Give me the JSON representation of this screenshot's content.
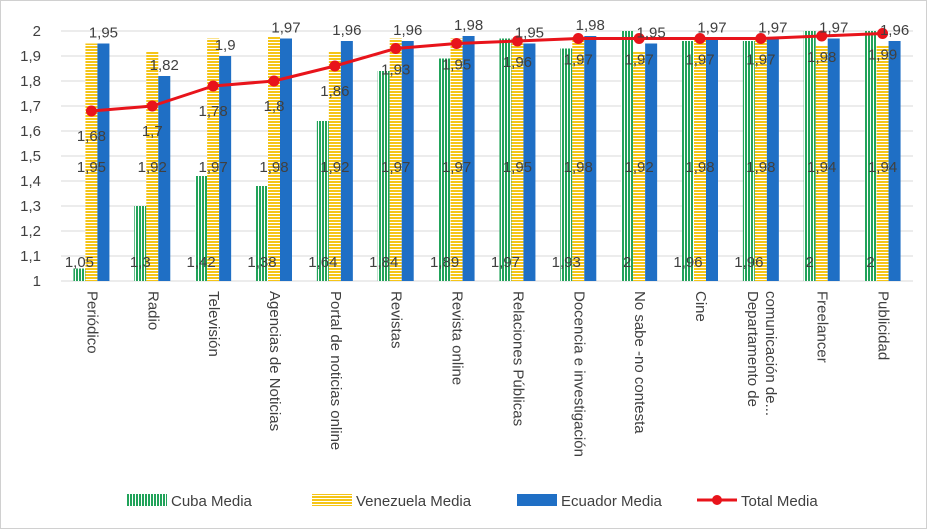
{
  "chart_data": {
    "type": "bar",
    "title": "",
    "xlabel": "",
    "ylabel": "",
    "ylim": [
      1,
      2
    ],
    "yticks": [
      "1",
      "1,1",
      "1,2",
      "1,3",
      "1,4",
      "1,5",
      "1,6",
      "1,7",
      "1,8",
      "1,9",
      "2"
    ],
    "grid": "horizontal",
    "legend_position": "bottom",
    "categories": [
      "Periódico",
      "Radio",
      "Televisión",
      "Agencias de Noticias",
      "Portal de noticias online",
      "Revistas",
      "Revista online",
      "Relaciones Públicas",
      "Docencia e investigación",
      "No sabe -no contesta",
      "Cine",
      "Departamento de comunicación de...",
      "Freelancer",
      "Publicidad"
    ],
    "category_lines": [
      [
        "Periódico"
      ],
      [
        "Radio"
      ],
      [
        "Televisión"
      ],
      [
        "Agencias de Noticias"
      ],
      [
        "Portal de noticias online"
      ],
      [
        "Revistas"
      ],
      [
        "Revista online"
      ],
      [
        "Relaciones Públicas"
      ],
      [
        "Docencia e investigación"
      ],
      [
        "No sabe -no contesta"
      ],
      [
        "Cine"
      ],
      [
        "Departamento de",
        "comunicación de..."
      ],
      [
        "Freelancer"
      ],
      [
        "Publicidad"
      ]
    ],
    "series": [
      {
        "name": "Cuba Media",
        "kind": "bar",
        "color": "#21a35a",
        "pattern": "vertical-stripes",
        "values": [
          1.05,
          1.3,
          1.42,
          1.38,
          1.64,
          1.84,
          1.89,
          1.97,
          1.93,
          2,
          1.96,
          1.96,
          2,
          2
        ],
        "labels": [
          "1,05",
          "1,3",
          "1,42",
          "1,38",
          "1,64",
          "1,84",
          "1,89",
          "1,97",
          "1,93",
          "2",
          "1,96",
          "1,96",
          "2",
          "2"
        ]
      },
      {
        "name": "Venezuela Media",
        "kind": "bar",
        "color": "#f5c518",
        "pattern": "horizontal-stripes",
        "values": [
          1.95,
          1.92,
          1.97,
          1.98,
          1.92,
          1.97,
          1.97,
          1.95,
          1.98,
          1.92,
          1.98,
          1.98,
          1.94,
          1.94
        ],
        "labels": [
          "1,95",
          "1,92",
          "1,97",
          "1,98",
          "1,92",
          "1,97",
          "1,97",
          "1,95",
          "1,98",
          "1,92",
          "1,98",
          "1,98",
          "1,94",
          "1,94"
        ]
      },
      {
        "name": "Ecuador Media",
        "kind": "bar",
        "color": "#1f6fc5",
        "pattern": "solid",
        "values": [
          1.95,
          1.82,
          1.9,
          1.97,
          1.96,
          1.96,
          1.98,
          1.95,
          1.98,
          1.95,
          1.97,
          1.97,
          1.97,
          1.96
        ],
        "labels": [
          "1,95",
          "1,82",
          "1,9",
          "1,97",
          "1,96",
          "1,96",
          "1,98",
          "1,95",
          "1,98",
          "1,95",
          "1,97",
          "1,97",
          "1,97",
          "1,96"
        ]
      },
      {
        "name": "Total Media",
        "kind": "line",
        "color": "#e8141b",
        "values": [
          1.68,
          1.7,
          1.78,
          1.8,
          1.86,
          1.93,
          1.95,
          1.96,
          1.97,
          1.97,
          1.97,
          1.97,
          1.98,
          1.99
        ],
        "labels": [
          "1,68",
          "1,7",
          "1,78",
          "1,8",
          "1,86",
          "1,93",
          "1,95",
          "1,96",
          "1,97",
          "1,97",
          "1,97",
          "1,97",
          "1,98",
          "1,99"
        ]
      }
    ]
  }
}
